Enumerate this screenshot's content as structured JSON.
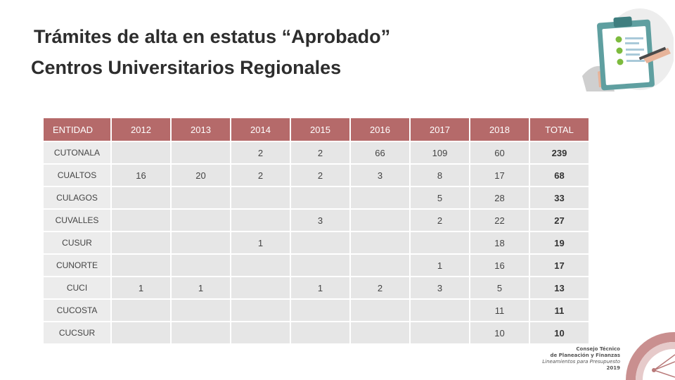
{
  "title": {
    "line1": "Trámites de alta en estatus “Aprobado”",
    "line2": "Centros Universitarios Regionales"
  },
  "table": {
    "headers": [
      "ENTIDAD",
      "2012",
      "2013",
      "2014",
      "2015",
      "2016",
      "2017",
      "2018",
      "TOTAL"
    ],
    "rows": [
      [
        "CUTONALA",
        "",
        "",
        "2",
        "2",
        "66",
        "109",
        "60",
        "239"
      ],
      [
        "CUALTOS",
        "16",
        "20",
        "2",
        "2",
        "3",
        "8",
        "17",
        "68"
      ],
      [
        "CULAGOS",
        "",
        "",
        "",
        "",
        "",
        "5",
        "28",
        "33"
      ],
      [
        "CUVALLES",
        "",
        "",
        "",
        "3",
        "",
        "2",
        "22",
        "27"
      ],
      [
        "CUSUR",
        "",
        "",
        "1",
        "",
        "",
        "",
        "18",
        "19"
      ],
      [
        "CUNORTE",
        "",
        "",
        "",
        "",
        "",
        "1",
        "16",
        "17"
      ],
      [
        "CUCI",
        "1",
        "1",
        "",
        "1",
        "2",
        "3",
        "5",
        "13"
      ],
      [
        "CUCOSTA",
        "",
        "",
        "",
        "",
        "",
        "",
        "11",
        "11"
      ],
      [
        "CUCSUR",
        "",
        "",
        "",
        "",
        "",
        "",
        "10",
        "10"
      ]
    ]
  },
  "logo": {
    "line1": "Consejo Técnico",
    "line2": "de Planeación y Finanzas",
    "line3": "Lineamientos para Presupuesto",
    "year": "2019"
  },
  "colors": {
    "header_bg": "#b56a6a",
    "cell_bg": "#e6e6e6",
    "accent": "#b56a6a"
  },
  "icons": {
    "illustration": "clipboard-checklist-icon",
    "logo": "council-logo-icon"
  }
}
